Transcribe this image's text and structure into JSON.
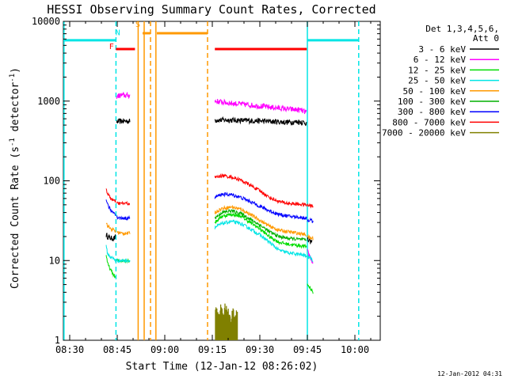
{
  "chart_data": {
    "type": "line",
    "title": "HESSI Observing Summary Count Rates, Corrected",
    "xlabel": "Start Time (12-Jan-12 08:26:02)",
    "ylabel_main": "Corrected Count Rate (s",
    "ylabel_sup1": "-1",
    "ylabel_mid": " detector",
    "ylabel_sup2": "-1",
    "ylabel_end": ")",
    "y_scale": "log",
    "ylim": [
      1,
      10000
    ],
    "xlim_minutes": [
      508,
      608
    ],
    "x_ticks": [
      {
        "t": 510,
        "label": "08:30"
      },
      {
        "t": 525,
        "label": "08:45"
      },
      {
        "t": 540,
        "label": "09:00"
      },
      {
        "t": 555,
        "label": "09:15"
      },
      {
        "t": 570,
        "label": "09:30"
      },
      {
        "t": 585,
        "label": "09:45"
      },
      {
        "t": 600,
        "label": "10:00"
      }
    ],
    "y_ticks": [
      {
        "v": 1,
        "label": "1"
      },
      {
        "v": 10,
        "label": "10"
      },
      {
        "v": 100,
        "label": "100"
      },
      {
        "v": 1000,
        "label": "1000"
      },
      {
        "v": 10000,
        "label": "10000"
      }
    ],
    "legend_header": [
      "Det 1,3,4,5,6,",
      "Att 0"
    ],
    "legend_placement": "top-right, outside plot",
    "series": [
      {
        "name": "3 - 6 keV",
        "color": "#000000",
        "segments": [
          [
            [
              521.5,
              21
            ],
            [
              522.0,
              20
            ],
            [
              523.0,
              19
            ],
            [
              524.0,
              19
            ],
            [
              524.6,
              20
            ]
          ],
          [
            [
              524.8,
              550
            ],
            [
              526.0,
              560
            ],
            [
              527.5,
              560
            ],
            [
              529.0,
              560
            ]
          ],
          [
            [
              555.8,
              580
            ],
            [
              560.0,
              580
            ],
            [
              566.0,
              570
            ],
            [
              572.0,
              560
            ],
            [
              578.0,
              545
            ],
            [
              583.0,
              550
            ],
            [
              584.8,
              530
            ]
          ],
          [
            [
              585.0,
              18
            ],
            [
              586.5,
              17
            ]
          ]
        ]
      },
      {
        "name": "6 - 12 keV",
        "color": "#ff00ff",
        "segments": [
          [
            [
              524.8,
              1150
            ],
            [
              526.0,
              1180
            ],
            [
              527.5,
              1180
            ],
            [
              529.0,
              1180
            ]
          ],
          [
            [
              555.8,
              1000
            ],
            [
              560.0,
              950
            ],
            [
              566.0,
              900
            ],
            [
              572.0,
              850
            ],
            [
              578.0,
              800
            ],
            [
              583.0,
              770
            ],
            [
              584.8,
              720
            ]
          ],
          [
            [
              585.0,
              13
            ],
            [
              586.0,
              11
            ],
            [
              586.8,
              9
            ]
          ]
        ]
      },
      {
        "name": "12 - 25 keV",
        "color": "#00dd00",
        "segments": [
          [
            [
              521.5,
              12
            ],
            [
              522.0,
              9
            ],
            [
              523.0,
              7.5
            ],
            [
              524.0,
              6.5
            ],
            [
              524.6,
              6
            ]
          ],
          [
            [
              524.8,
              10
            ],
            [
              526.0,
              10
            ],
            [
              527.5,
              10
            ],
            [
              529.0,
              10
            ]
          ],
          [
            [
              555.8,
              30
            ],
            [
              558.0,
              36
            ],
            [
              561.0,
              38
            ],
            [
              564.0,
              36
            ],
            [
              567.0,
              30
            ],
            [
              570.0,
              25
            ],
            [
              573.0,
              20
            ],
            [
              576.0,
              17
            ],
            [
              579.0,
              16
            ],
            [
              582.0,
              15.5
            ],
            [
              584.8,
              15
            ]
          ],
          [
            [
              585.0,
              5
            ],
            [
              586.0,
              4.5
            ],
            [
              586.8,
              4
            ]
          ]
        ]
      },
      {
        "name": "25 - 50 keV",
        "color": "#00e5e5",
        "segments": [
          [
            [
              521.5,
              15
            ],
            [
              522.0,
              12
            ],
            [
              523.0,
              11
            ],
            [
              524.0,
              10.5
            ],
            [
              524.6,
              10
            ]
          ],
          [
            [
              524.8,
              10
            ],
            [
              526.0,
              10
            ],
            [
              527.5,
              10
            ],
            [
              529.0,
              10
            ]
          ],
          [
            [
              555.8,
              26
            ],
            [
              558.0,
              29
            ],
            [
              561.0,
              31
            ],
            [
              564.0,
              29
            ],
            [
              567.0,
              25
            ],
            [
              570.0,
              21
            ],
            [
              573.0,
              17
            ],
            [
              576.0,
              13.5
            ],
            [
              579.0,
              12.5
            ],
            [
              582.0,
              12
            ],
            [
              584.8,
              11.5
            ]
          ],
          [
            [
              585.0,
              11
            ],
            [
              586.0,
              11
            ],
            [
              586.8,
              10
            ]
          ]
        ]
      },
      {
        "name": "50 - 100 keV",
        "color": "#ff9900",
        "segments": [
          [
            [
              521.5,
              30
            ],
            [
              522.0,
              27
            ],
            [
              523.0,
              25
            ],
            [
              524.0,
              24
            ],
            [
              524.6,
              23
            ]
          ],
          [
            [
              524.8,
              23
            ],
            [
              526.0,
              22
            ],
            [
              527.5,
              22
            ],
            [
              529.0,
              22
            ]
          ],
          [
            [
              555.8,
              40
            ],
            [
              558.0,
              45
            ],
            [
              561.0,
              47
            ],
            [
              564.0,
              44
            ],
            [
              567.0,
              38
            ],
            [
              570.0,
              32
            ],
            [
              573.0,
              27
            ],
            [
              576.0,
              24
            ],
            [
              579.0,
              23
            ],
            [
              582.0,
              22
            ],
            [
              584.8,
              21
            ]
          ],
          [
            [
              585.0,
              20
            ],
            [
              586.0,
              19
            ],
            [
              586.8,
              19
            ]
          ]
        ]
      },
      {
        "name": "100 - 300 keV",
        "color": "#00b000",
        "segments": [
          [
            [
              555.8,
              34
            ],
            [
              558.0,
              40
            ],
            [
              561.0,
              42
            ],
            [
              564.0,
              39
            ],
            [
              567.0,
              33
            ],
            [
              570.0,
              28
            ],
            [
              573.0,
              23
            ],
            [
              576.0,
              20
            ],
            [
              579.0,
              19
            ],
            [
              582.0,
              18.5
            ],
            [
              584.8,
              18
            ]
          ]
        ]
      },
      {
        "name": "300 - 800 keV",
        "color": "#0000ff",
        "segments": [
          [
            [
              521.5,
              60
            ],
            [
              522.0,
              50
            ],
            [
              523.0,
              42
            ],
            [
              524.0,
              40
            ],
            [
              524.6,
              38
            ]
          ],
          [
            [
              524.8,
              35
            ],
            [
              526.0,
              34
            ],
            [
              527.5,
              34
            ],
            [
              529.0,
              34
            ]
          ],
          [
            [
              555.8,
              62
            ],
            [
              558.0,
              68
            ],
            [
              561.0,
              67
            ],
            [
              564.0,
              62
            ],
            [
              567.0,
              55
            ],
            [
              570.0,
              48
            ],
            [
              573.0,
              42
            ],
            [
              576.0,
              38
            ],
            [
              579.0,
              36
            ],
            [
              582.0,
              35
            ],
            [
              584.8,
              34
            ]
          ],
          [
            [
              585.0,
              32
            ],
            [
              586.0,
              32
            ],
            [
              586.8,
              31
            ]
          ]
        ]
      },
      {
        "name": "800 - 7000 keV",
        "color": "#ff0000",
        "segments": [
          [
            [
              521.5,
              80
            ],
            [
              522.0,
              68
            ],
            [
              523.0,
              60
            ],
            [
              524.0,
              56
            ],
            [
              524.6,
              55
            ]
          ],
          [
            [
              524.8,
              52
            ],
            [
              526.0,
              52
            ],
            [
              527.5,
              52
            ],
            [
              529.0,
              52
            ]
          ],
          [
            [
              555.8,
              110
            ],
            [
              558.0,
              116
            ],
            [
              561.0,
              112
            ],
            [
              564.0,
              102
            ],
            [
              567.0,
              88
            ],
            [
              570.0,
              75
            ],
            [
              573.0,
              62
            ],
            [
              576.0,
              55
            ],
            [
              579.0,
              52
            ],
            [
              582.0,
              51
            ],
            [
              584.8,
              50
            ]
          ],
          [
            [
              585.0,
              49
            ],
            [
              586.0,
              49
            ],
            [
              586.8,
              48
            ]
          ]
        ]
      },
      {
        "name": "7000 - 20000 keV",
        "color": "#808000",
        "segments": [
          [
            [
              556.0,
              2.6
            ],
            [
              557.0,
              2.8
            ],
            [
              558.0,
              3.0
            ],
            [
              559.0,
              2.9
            ],
            [
              560.0,
              2.7
            ],
            [
              561.0,
              2.6
            ],
            [
              562.0,
              2.5
            ],
            [
              563.0,
              2.3
            ]
          ]
        ]
      }
    ],
    "annotations": {
      "labels": [
        {
          "text": "F",
          "color": "#ff0000",
          "t": 523.2,
          "v": 4500
        },
        {
          "text": "N",
          "color": "#00e5e5",
          "t": 525.2,
          "v": 6700
        },
        {
          "text": "S",
          "color": "#ff9900",
          "t": 531.5,
          "v": 8500
        }
      ],
      "hbars": [
        {
          "color": "#00e5e5",
          "t1": 508.2,
          "t2": 524.6,
          "v": 5800
        },
        {
          "color": "#00e5e5",
          "t1": 585.0,
          "t2": 601.2,
          "v": 5800
        },
        {
          "color": "#ff0000",
          "t1": 524.6,
          "t2": 530.6,
          "v": 4500
        },
        {
          "color": "#ff0000",
          "t1": 555.8,
          "t2": 584.8,
          "v": 4500
        },
        {
          "color": "#ff9900",
          "t1": 533.0,
          "t2": 535.5,
          "v": 7100
        },
        {
          "color": "#ff9900",
          "t1": 537.5,
          "t2": 553.5,
          "v": 7100
        }
      ],
      "vlines": [
        {
          "color": "#00e5e5",
          "t": 508.2,
          "style": "solid"
        },
        {
          "color": "#00e5e5",
          "t": 524.6,
          "style": "dashed"
        },
        {
          "color": "#00e5e5",
          "t": 585.0,
          "style": "solid"
        },
        {
          "color": "#00e5e5",
          "t": 601.2,
          "style": "dashed"
        },
        {
          "color": "#ff9900",
          "t": 531.6,
          "style": "solid"
        },
        {
          "color": "#ff9900",
          "t": 533.5,
          "style": "solid"
        },
        {
          "color": "#ff9900",
          "t": 535.5,
          "style": "dashed"
        },
        {
          "color": "#ff9900",
          "t": 537.2,
          "style": "solid"
        },
        {
          "color": "#ff9900",
          "t": 553.5,
          "style": "dashed"
        }
      ]
    }
  },
  "footer_timestamp": "12-Jan-2012 04:31"
}
